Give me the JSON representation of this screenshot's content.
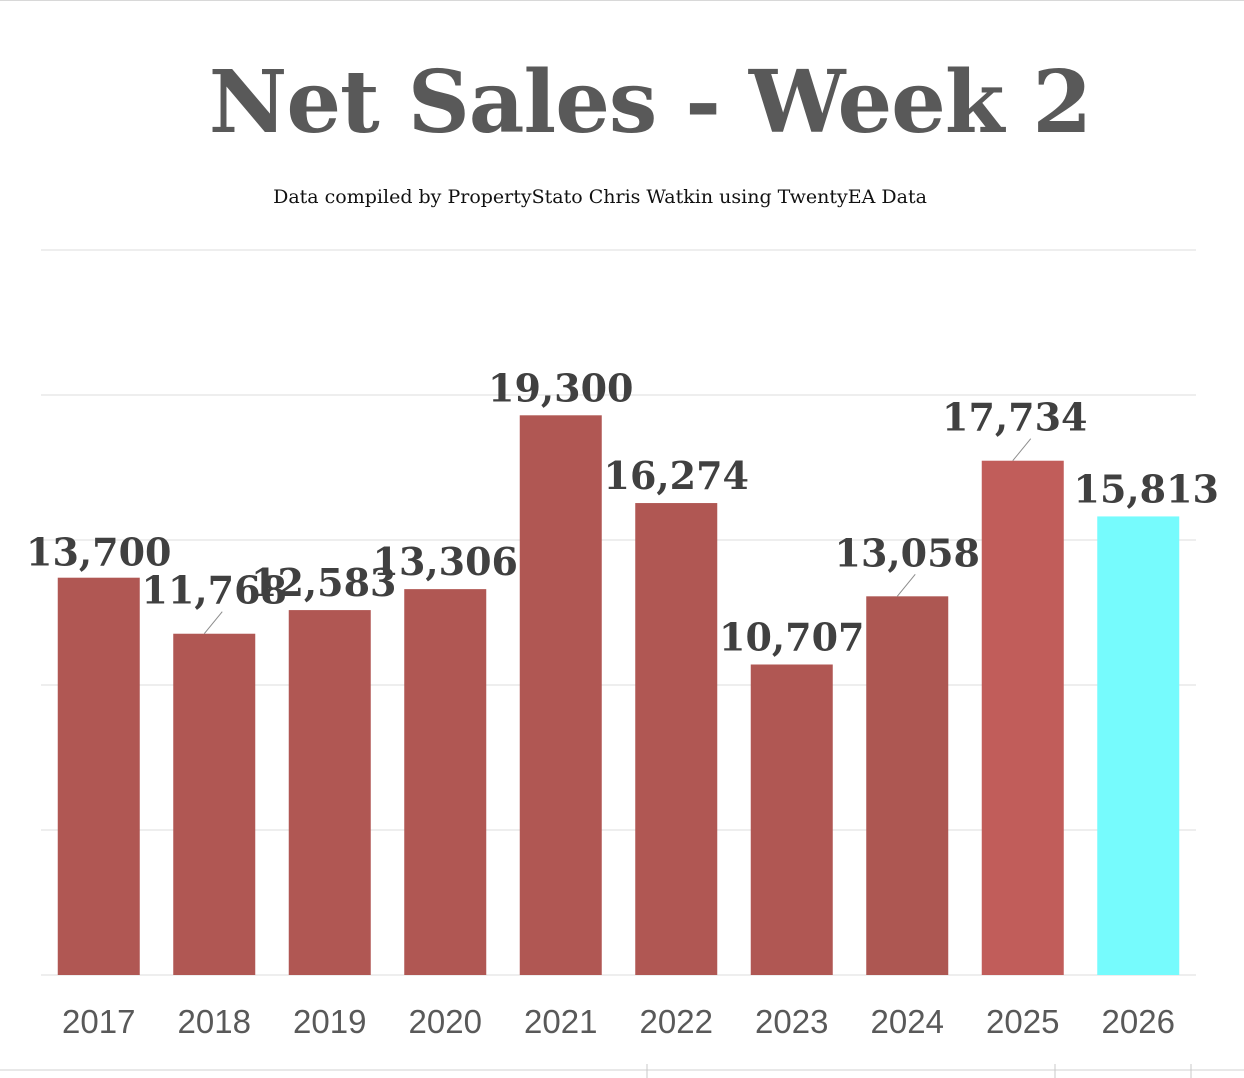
{
  "chart_data": {
    "type": "bar",
    "title": "Net Sales - Week 2",
    "subtitle": "Data compiled by PropertyStato Chris Watkin using TwentyEA Data",
    "xlabel": "",
    "ylabel": "",
    "categories": [
      "2017",
      "2018",
      "2019",
      "2020",
      "2021",
      "2022",
      "2023",
      "2024",
      "2025",
      "2026"
    ],
    "values": [
      13700,
      11768,
      12583,
      13306,
      19300,
      16274,
      10707,
      13058,
      17734,
      15813
    ],
    "data_labels": [
      "13,700",
      "11,768",
      "12,583",
      "13,306",
      "19,300",
      "16,274",
      "10,707",
      "13,058",
      "17,734",
      "15,813"
    ],
    "ylim": [
      0,
      25000
    ],
    "gridlines": [
      0,
      5000,
      10000,
      15000,
      20000,
      25000
    ],
    "y_tick_labels_visible": false,
    "grid": true,
    "legend": "none",
    "colors": {
      "default": "#b05753",
      "2024": "#ad5752",
      "2025": "#c15d5a",
      "2026": "#76fbfd",
      "grid": "#e3e3e3"
    }
  }
}
